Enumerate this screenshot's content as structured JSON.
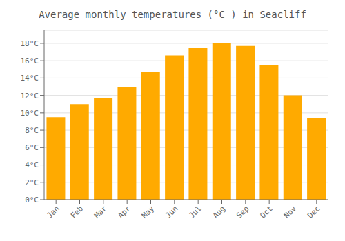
{
  "chart_data": {
    "type": "bar",
    "title": "Average monthly temperatures (°C ) in Seacliff",
    "categories": [
      "Jan",
      "Feb",
      "Mar",
      "Apr",
      "May",
      "Jun",
      "Jul",
      "Aug",
      "Sep",
      "Oct",
      "Nov",
      "Dec"
    ],
    "values": [
      9.5,
      11.0,
      11.7,
      13.0,
      14.7,
      16.6,
      17.5,
      18.0,
      17.7,
      15.5,
      12.0,
      9.4
    ],
    "color": "#FFAA00",
    "ylim": [
      0,
      19.5
    ],
    "yticks": [
      {
        "value": 0,
        "label": "0°C"
      },
      {
        "value": 2,
        "label": "2°C"
      },
      {
        "value": 4,
        "label": "4°C"
      },
      {
        "value": 6,
        "label": "6°C"
      },
      {
        "value": 8,
        "label": "8°C"
      },
      {
        "value": 10,
        "label": "10°C"
      },
      {
        "value": 12,
        "label": "12°C"
      },
      {
        "value": 14,
        "label": "14°C"
      },
      {
        "value": 16,
        "label": "16°C"
      },
      {
        "value": 18,
        "label": "18°C"
      }
    ],
    "grid": true
  }
}
